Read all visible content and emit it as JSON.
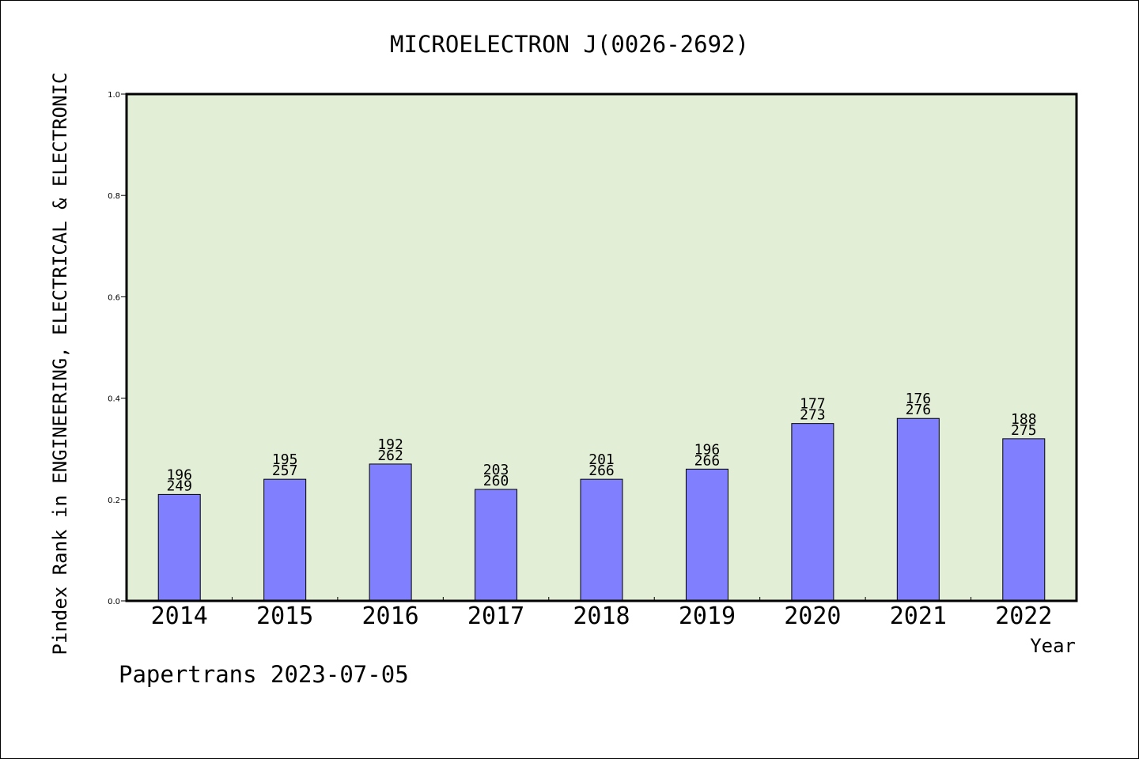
{
  "chart_data": {
    "type": "bar",
    "title": "MICROELECTRON J(0026-2692)",
    "ylabel": "Pindex Rank in ENGINEERING, ELECTRICAL & ELECTRONIC",
    "xlabel": "Year",
    "categories": [
      "2014",
      "2015",
      "2016",
      "2017",
      "2018",
      "2019",
      "2020",
      "2021",
      "2022"
    ],
    "values": [
      0.21,
      0.24,
      0.27,
      0.22,
      0.24,
      0.26,
      0.35,
      0.36,
      0.32
    ],
    "labels_top": [
      "196",
      "195",
      "192",
      "203",
      "201",
      "196",
      "177",
      "176",
      "188"
    ],
    "labels_bottom": [
      "249",
      "257",
      "262",
      "260",
      "266",
      "266",
      "273",
      "276",
      "275"
    ],
    "ylim": [
      0.0,
      1.0
    ],
    "yticks": [
      "0.0",
      "0.2",
      "0.4",
      "0.6",
      "0.8",
      "1.0"
    ],
    "ytick_values": [
      0.0,
      0.2,
      0.4,
      0.6,
      0.8,
      1.0
    ],
    "grid": false,
    "bar_color": "#8080ff",
    "plot_background": "#e2efd6"
  },
  "footer": "Papertrans 2023-07-05"
}
